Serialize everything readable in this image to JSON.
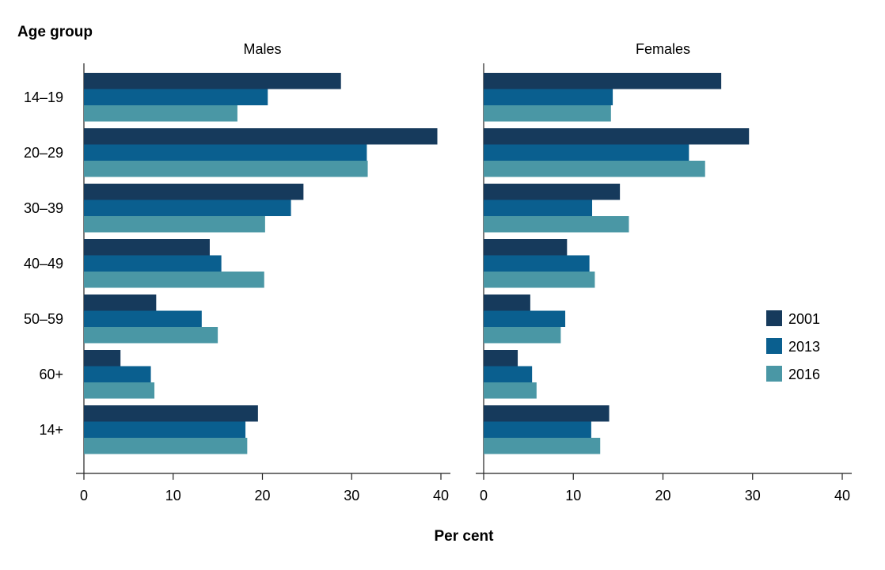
{
  "chart_data": {
    "type": "bar",
    "orientation": "horizontal",
    "y_axis_title": "Age group",
    "x_axis_title": "Per cent",
    "xlim": [
      0,
      40
    ],
    "x_ticks": [
      0,
      10,
      20,
      30,
      40
    ],
    "categories": [
      "14–19",
      "20–29",
      "30–39",
      "40–49",
      "50–59",
      "60+",
      "14+"
    ],
    "legend_position": "right",
    "series_names": [
      "2001",
      "2013",
      "2016"
    ],
    "colors": [
      "#163a5c",
      "#0a5f8f",
      "#4a97a5"
    ],
    "panels": [
      {
        "title": "Males",
        "series": [
          {
            "name": "2001",
            "values": [
              28.8,
              39.6,
              24.6,
              14.1,
              8.1,
              4.1,
              19.5
            ]
          },
          {
            "name": "2013",
            "values": [
              20.6,
              31.7,
              23.2,
              15.4,
              13.2,
              7.5,
              18.1
            ]
          },
          {
            "name": "2016",
            "values": [
              17.2,
              31.8,
              20.3,
              20.2,
              15.0,
              7.9,
              18.3
            ]
          }
        ]
      },
      {
        "title": "Females",
        "series": [
          {
            "name": "2001",
            "values": [
              26.5,
              29.6,
              15.2,
              9.3,
              5.2,
              3.8,
              14.0
            ]
          },
          {
            "name": "2013",
            "values": [
              14.4,
              22.9,
              12.1,
              11.8,
              9.1,
              5.4,
              12.0
            ]
          },
          {
            "name": "2016",
            "values": [
              14.2,
              24.7,
              16.2,
              12.4,
              8.6,
              5.9,
              13.0
            ]
          }
        ]
      }
    ]
  }
}
